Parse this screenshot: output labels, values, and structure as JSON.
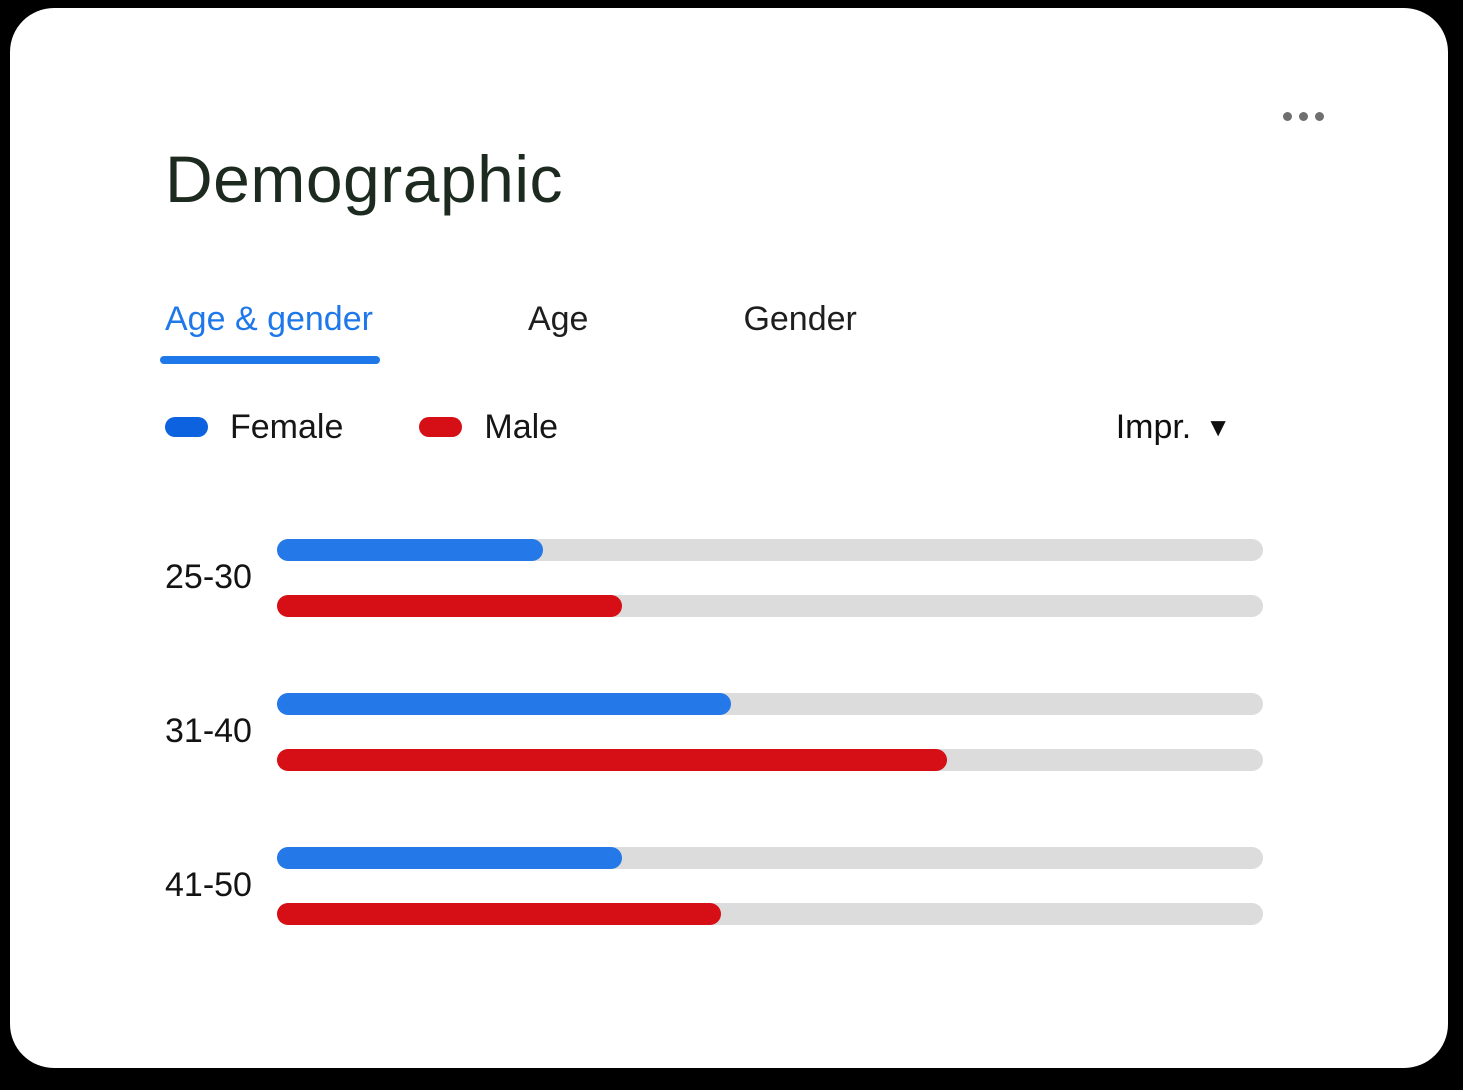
{
  "card": {
    "title": "Demographic"
  },
  "menu": {
    "icon": "more-horizontal-icon"
  },
  "tabs": [
    {
      "label": "Age & gender",
      "active": true
    },
    {
      "label": "Age",
      "active": false
    },
    {
      "label": "Gender",
      "active": false
    }
  ],
  "legend": [
    {
      "label": "Female",
      "color": "#0d62e0",
      "icon": "female-series-swatch-icon"
    },
    {
      "label": "Male",
      "color": "#d60e15",
      "icon": "male-series-swatch-icon"
    }
  ],
  "sort": {
    "label": "Impr.",
    "arrow": "▼",
    "direction": "descending"
  },
  "chart_data": {
    "type": "bar",
    "orientation": "horizontal",
    "title": "Demographic — Age & gender",
    "metric": "Impr.",
    "categories": [
      "25-30",
      "31-40",
      "41-50"
    ],
    "series": [
      {
        "name": "Female",
        "color": "#2478e8",
        "values_pct": [
          27,
          46,
          35
        ]
      },
      {
        "name": "Male",
        "color": "#d60e15",
        "values_pct": [
          35,
          68,
          45
        ]
      }
    ],
    "xlim": [
      0,
      100
    ],
    "grid": false,
    "track_color": "#dcdcdc",
    "legend_position": "top-left"
  },
  "colors": {
    "accent_blue": "#1e78ea",
    "female_bar": "#2478e8",
    "male_bar": "#d60e15",
    "track": "#dcdcdc",
    "title_text": "#1d2a20",
    "dots": "#6f6f6f",
    "card_background": "#ffffff",
    "page_background": "#000000"
  }
}
